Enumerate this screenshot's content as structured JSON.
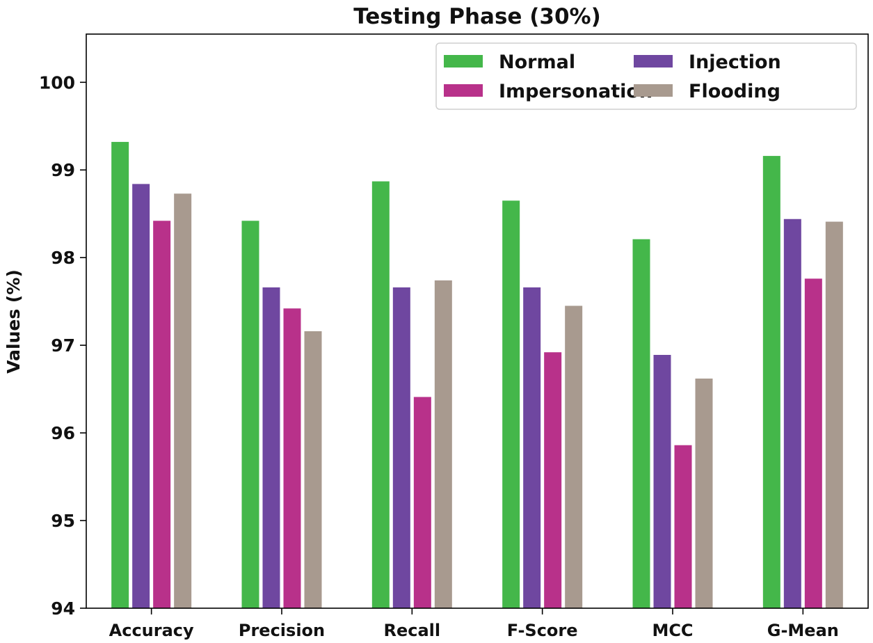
{
  "chart_data": {
    "type": "bar",
    "title": "Testing Phase (30%)",
    "xlabel": "",
    "ylabel": "Values (%)",
    "ylim": [
      94,
      100.55
    ],
    "yticks": [
      94,
      95,
      96,
      97,
      98,
      99,
      100
    ],
    "categories": [
      "Accuracy",
      "Precision",
      "Recall",
      "F-Score",
      "MCC",
      "G-Mean"
    ],
    "series": [
      {
        "name": "Normal",
        "color": "#44b74a",
        "values": [
          99.32,
          98.42,
          98.87,
          98.65,
          98.21,
          99.16
        ]
      },
      {
        "name": "Injection",
        "color": "#6f47a0",
        "values": [
          98.84,
          97.66,
          97.66,
          97.66,
          96.89,
          98.44
        ]
      },
      {
        "name": "Impersonation",
        "color": "#b8318a",
        "values": [
          98.42,
          97.42,
          96.41,
          96.92,
          95.86,
          97.76
        ]
      },
      {
        "name": "Flooding",
        "color": "#a89a8f",
        "values": [
          98.73,
          97.16,
          97.74,
          97.45,
          96.62,
          98.41
        ]
      }
    ],
    "grid": false,
    "legend": {
      "position": "top-right",
      "columns": 2
    }
  }
}
